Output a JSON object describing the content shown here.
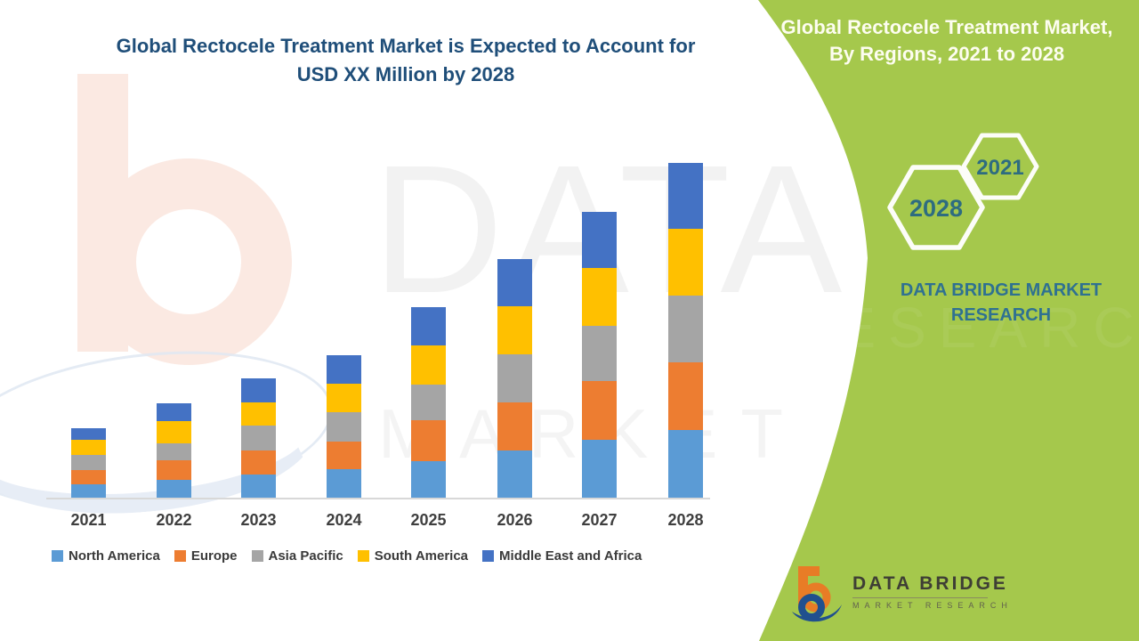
{
  "main_title": {
    "line1": "Global Rectocele Treatment Market is Expected to Account for",
    "line2": "USD XX Million by 2028"
  },
  "side_panel": {
    "title_line1": "Global Rectocele Treatment Market,",
    "title_line2": "By Regions, 2021 to 2028",
    "hexagon_small_label": "2021",
    "hexagon_large_label": "2028",
    "brand_caption_line1": "DATA BRIDGE MARKET",
    "brand_caption_line2": "RESEARCH",
    "colors": {
      "panel_green": "#A5C84C",
      "heading_cream": "#FDFDF0",
      "hex_text_teal": "#2E6C80",
      "caption_teal": "#2F7191"
    }
  },
  "logo": {
    "line1": "DATA BRIDGE",
    "line2": "MARKET  RESEARCH"
  },
  "watermarks": {
    "big_text": "DATA BRIDGE",
    "row2_text": "MARKET RESEARCH",
    "panel_ghost": "RESEARCH"
  },
  "chart_data": {
    "type": "bar",
    "stacked": true,
    "title": "Global Rectocele Treatment Market is Expected to Account for USD XX Million by 2028",
    "subtitle": "Global Rectocele Treatment Market, By Regions, 2021 to 2028",
    "xlabel": "",
    "ylabel": "",
    "grid": false,
    "legend_position": "bottom",
    "value_units": "arbitrary relative units (no y-axis values shown in source)",
    "categories": [
      "2021",
      "2022",
      "2023",
      "2024",
      "2025",
      "2026",
      "2027",
      "2028"
    ],
    "series": [
      {
        "name": "North America",
        "color": "#5B9BD5",
        "values": [
          16,
          21,
          27,
          33,
          42,
          54,
          66,
          77
        ]
      },
      {
        "name": "Europe",
        "color": "#ED7D31",
        "values": [
          16,
          22,
          27,
          31,
          46,
          54,
          66,
          76
        ]
      },
      {
        "name": "Asia Pacific",
        "color": "#A5A5A5",
        "values": [
          17,
          19,
          28,
          33,
          40,
          54,
          62,
          75
        ]
      },
      {
        "name": "South America",
        "color": "#FFC000",
        "values": [
          17,
          25,
          26,
          32,
          44,
          54,
          65,
          75
        ]
      },
      {
        "name": "Middle East and Africa",
        "color": "#4472C4",
        "values": [
          13,
          20,
          27,
          32,
          43,
          53,
          63,
          74
        ]
      }
    ],
    "totals": [
      79,
      107,
      135,
      161,
      215,
      269,
      322,
      377
    ]
  }
}
